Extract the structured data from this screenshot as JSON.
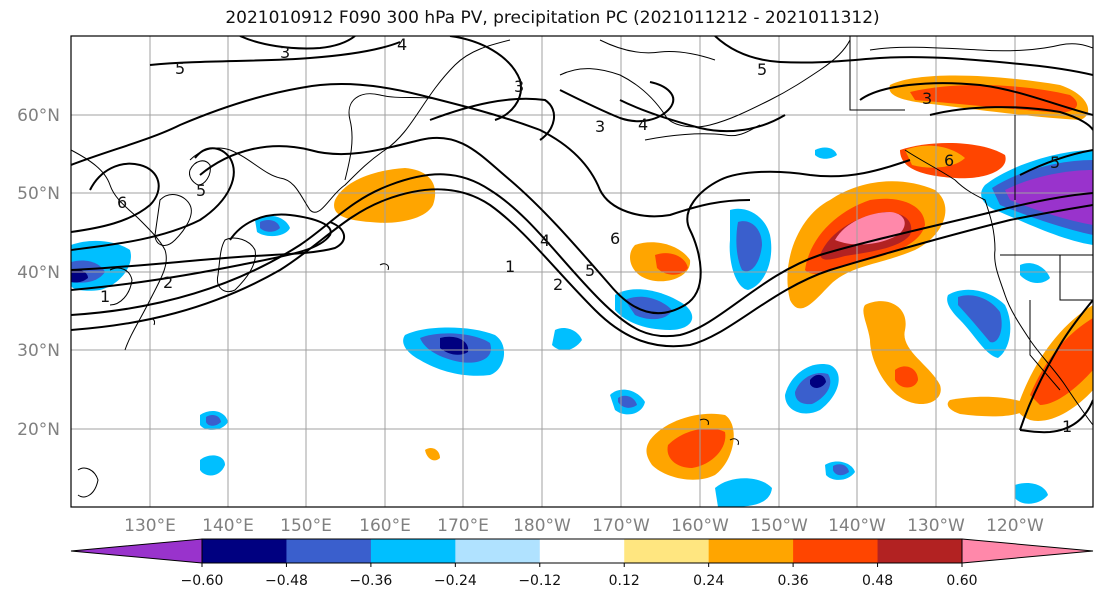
{
  "title": "2021010912 F090 300 hPa PV, precipitation PC (2021011212 - 2021011312)",
  "map": {
    "lat_labels": [
      "60°N",
      "50°N",
      "40°N",
      "30°N",
      "20°N"
    ],
    "lon_labels": [
      "130°E",
      "140°E",
      "150°E",
      "160°E",
      "170°E",
      "180°W",
      "170°W",
      "160°W",
      "150°W",
      "140°W",
      "130°W",
      "120°W"
    ],
    "contour_labels": [
      "5",
      "3",
      "4",
      "3",
      "3",
      "4",
      "5",
      "3",
      "6",
      "5",
      "6",
      "5",
      "4",
      "6",
      "5",
      "2",
      "1",
      "2",
      "1",
      "1"
    ]
  },
  "colorbar": {
    "colors": [
      "#9933cc",
      "#000080",
      "#3a5fcd",
      "#00bfff",
      "#b0e2ff",
      "#ffffff",
      "#ffe680",
      "#ffa500",
      "#ff4500",
      "#b22222",
      "#ff88aa"
    ],
    "tick_labels": [
      "-0.60",
      "-0.48",
      "-0.36",
      "-0.24",
      "-0.12",
      "0.12",
      "0.24",
      "0.36",
      "0.48",
      "0.60"
    ]
  }
}
